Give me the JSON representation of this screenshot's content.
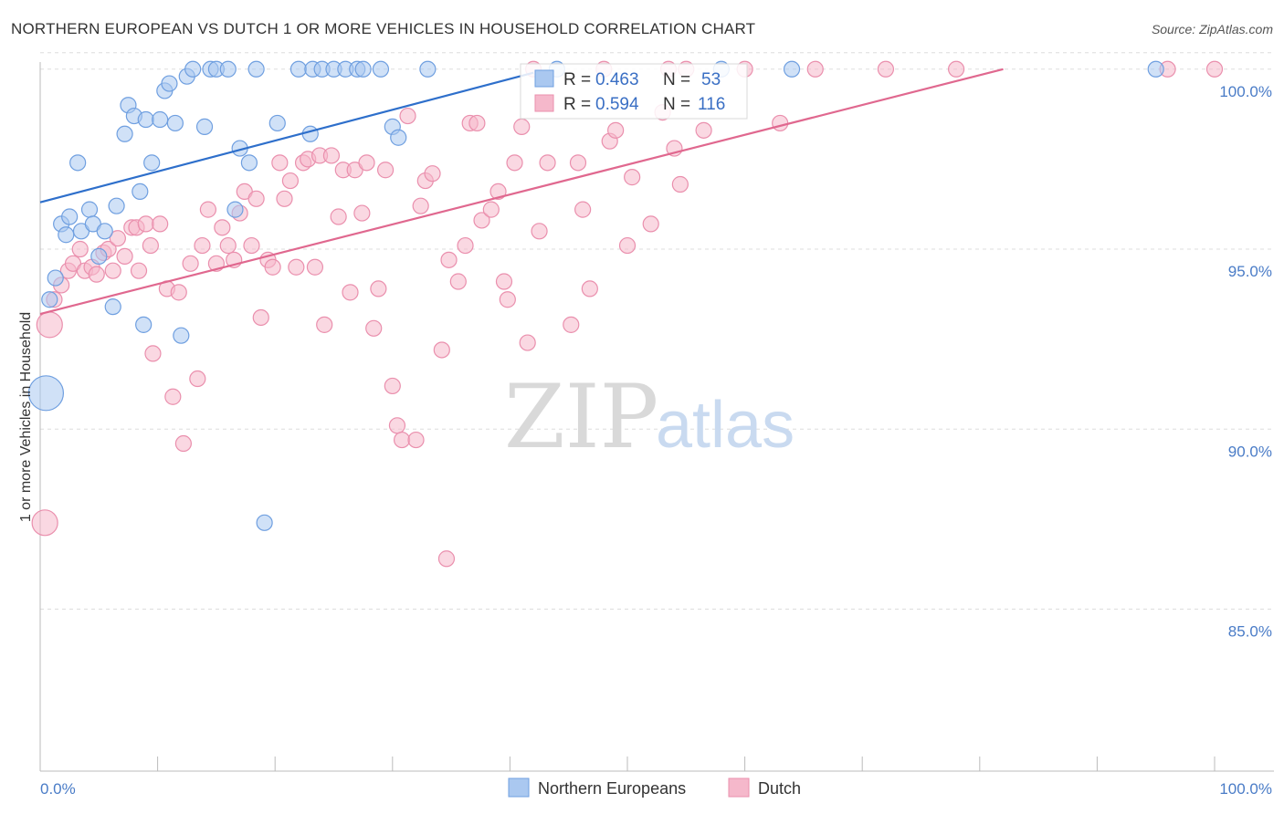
{
  "header": {
    "title": "NORTHERN EUROPEAN VS DUTCH 1 OR MORE VEHICLES IN HOUSEHOLD CORRELATION CHART",
    "source": "Source: ZipAtlas.com"
  },
  "watermark": {
    "zip": "ZIP",
    "atlas": "atlas"
  },
  "colors": {
    "blue_fill": "#aac8f0",
    "blue_stroke": "#6f9fe0",
    "blue_line": "#2e6fcb",
    "pink_fill": "#f5b8cb",
    "pink_stroke": "#ea8fad",
    "pink_line": "#e0688f",
    "grid": "#dddddd",
    "tick": "#4a7cc7"
  },
  "legend_stats": [
    {
      "r_label": "R =",
      "r_value": "0.463",
      "n_label": "N =",
      "n_value": "53"
    },
    {
      "r_label": "R =",
      "r_value": "0.594",
      "n_label": "N =",
      "n_value": "116"
    }
  ],
  "chart_data": {
    "type": "scatter",
    "title": "NORTHERN EUROPEAN VS DUTCH 1 OR MORE VEHICLES IN HOUSEHOLD CORRELATION CHART",
    "xlabel": "",
    "ylabel": "1 or more Vehicles in Household",
    "xlim": [
      0,
      100
    ],
    "ylim": [
      80.5,
      100.4
    ],
    "x_tick_labels": [
      "0.0%",
      "100.0%"
    ],
    "y_ticks": [
      100,
      95,
      90,
      85
    ],
    "y_tick_labels": [
      "100.0%",
      "95.0%",
      "90.0%",
      "85.0%"
    ],
    "grid": true,
    "legend_position": "bottom",
    "series": [
      {
        "name": "Northern Europeans",
        "trend": {
          "x0": 0,
          "y0": 96.3,
          "x1": 42,
          "y1": 99.9
        },
        "points": [
          [
            0.8,
            93.6
          ],
          [
            1.3,
            94.2
          ],
          [
            1.8,
            95.7
          ],
          [
            2.2,
            95.4
          ],
          [
            2.5,
            95.9
          ],
          [
            3.2,
            97.4
          ],
          [
            3.5,
            95.5
          ],
          [
            4.2,
            96.1
          ],
          [
            4.5,
            95.7
          ],
          [
            5.0,
            94.8
          ],
          [
            5.5,
            95.5
          ],
          [
            6.2,
            93.4
          ],
          [
            6.5,
            96.2
          ],
          [
            7.2,
            98.2
          ],
          [
            7.5,
            99.0
          ],
          [
            8.0,
            98.7
          ],
          [
            8.5,
            96.6
          ],
          [
            8.8,
            92.9
          ],
          [
            9.0,
            98.6
          ],
          [
            9.5,
            97.4
          ],
          [
            10.2,
            98.6
          ],
          [
            10.6,
            99.4
          ],
          [
            11.0,
            99.6
          ],
          [
            11.5,
            98.5
          ],
          [
            12.0,
            92.6
          ],
          [
            12.5,
            99.8
          ],
          [
            13.0,
            100.0
          ],
          [
            14.0,
            98.4
          ],
          [
            14.5,
            100.0
          ],
          [
            15.0,
            100.0
          ],
          [
            16.0,
            100.0
          ],
          [
            16.6,
            96.1
          ],
          [
            17.0,
            97.8
          ],
          [
            17.8,
            97.4
          ],
          [
            18.4,
            100.0
          ],
          [
            19.1,
            87.4
          ],
          [
            20.2,
            98.5
          ],
          [
            22.0,
            100.0
          ],
          [
            23.0,
            98.2
          ],
          [
            23.2,
            100.0
          ],
          [
            24.0,
            100.0
          ],
          [
            25.0,
            100.0
          ],
          [
            26.0,
            100.0
          ],
          [
            27.0,
            100.0
          ],
          [
            27.5,
            100.0
          ],
          [
            29.0,
            100.0
          ],
          [
            30.0,
            98.4
          ],
          [
            30.5,
            98.1
          ],
          [
            33.0,
            100.0
          ],
          [
            44.0,
            100.0
          ],
          [
            58.0,
            100.0
          ],
          [
            64.0,
            100.0
          ],
          [
            95.0,
            100.0
          ]
        ],
        "big_points": [
          [
            0.5,
            91.0
          ]
        ]
      },
      {
        "name": "Dutch",
        "trend": {
          "x0": 0,
          "y0": 93.2,
          "x1": 82,
          "y1": 100.0
        },
        "points": [
          [
            1.2,
            93.6
          ],
          [
            1.8,
            94.0
          ],
          [
            2.4,
            94.4
          ],
          [
            2.8,
            94.6
          ],
          [
            3.4,
            95.0
          ],
          [
            3.8,
            94.4
          ],
          [
            4.4,
            94.5
          ],
          [
            4.8,
            94.3
          ],
          [
            5.4,
            94.9
          ],
          [
            5.8,
            95.0
          ],
          [
            6.2,
            94.4
          ],
          [
            6.6,
            95.3
          ],
          [
            7.2,
            94.8
          ],
          [
            7.8,
            95.6
          ],
          [
            8.2,
            95.6
          ],
          [
            8.4,
            94.4
          ],
          [
            9.0,
            95.7
          ],
          [
            9.4,
            95.1
          ],
          [
            9.6,
            92.1
          ],
          [
            10.2,
            95.7
          ],
          [
            10.8,
            93.9
          ],
          [
            11.3,
            90.9
          ],
          [
            11.8,
            93.8
          ],
          [
            12.2,
            89.6
          ],
          [
            12.8,
            94.6
          ],
          [
            13.4,
            91.4
          ],
          [
            13.8,
            95.1
          ],
          [
            14.3,
            96.1
          ],
          [
            15.0,
            94.6
          ],
          [
            15.5,
            95.6
          ],
          [
            16.0,
            95.1
          ],
          [
            16.5,
            94.7
          ],
          [
            17.0,
            96.0
          ],
          [
            17.4,
            96.6
          ],
          [
            18.0,
            95.1
          ],
          [
            18.4,
            96.4
          ],
          [
            18.8,
            93.1
          ],
          [
            19.4,
            94.7
          ],
          [
            19.8,
            94.5
          ],
          [
            20.4,
            97.4
          ],
          [
            20.8,
            96.4
          ],
          [
            21.3,
            96.9
          ],
          [
            21.8,
            94.5
          ],
          [
            22.4,
            97.4
          ],
          [
            22.8,
            97.5
          ],
          [
            23.4,
            94.5
          ],
          [
            23.8,
            97.6
          ],
          [
            24.2,
            92.9
          ],
          [
            24.8,
            97.6
          ],
          [
            25.4,
            95.9
          ],
          [
            25.8,
            97.2
          ],
          [
            26.4,
            93.8
          ],
          [
            26.8,
            97.2
          ],
          [
            27.4,
            96.0
          ],
          [
            27.8,
            97.4
          ],
          [
            28.4,
            92.8
          ],
          [
            28.8,
            93.9
          ],
          [
            29.4,
            97.2
          ],
          [
            30.0,
            91.2
          ],
          [
            30.4,
            90.1
          ],
          [
            30.8,
            89.7
          ],
          [
            31.3,
            98.7
          ],
          [
            32.0,
            89.7
          ],
          [
            32.4,
            96.2
          ],
          [
            32.8,
            96.9
          ],
          [
            33.4,
            97.1
          ],
          [
            34.2,
            92.2
          ],
          [
            34.6,
            86.4
          ],
          [
            34.8,
            94.7
          ],
          [
            35.6,
            94.1
          ],
          [
            36.2,
            95.1
          ],
          [
            36.6,
            98.5
          ],
          [
            37.2,
            98.5
          ],
          [
            37.6,
            95.8
          ],
          [
            38.4,
            96.1
          ],
          [
            39.0,
            96.6
          ],
          [
            39.5,
            94.1
          ],
          [
            39.8,
            93.6
          ],
          [
            40.4,
            97.4
          ],
          [
            41.0,
            98.4
          ],
          [
            41.5,
            92.4
          ],
          [
            42.0,
            100.0
          ],
          [
            42.5,
            95.5
          ],
          [
            43.2,
            97.4
          ],
          [
            45.2,
            92.9
          ],
          [
            45.8,
            97.4
          ],
          [
            46.2,
            96.1
          ],
          [
            46.8,
            93.9
          ],
          [
            48.0,
            100.0
          ],
          [
            48.5,
            98.0
          ],
          [
            49.0,
            98.3
          ],
          [
            50.0,
            95.1
          ],
          [
            50.4,
            97.0
          ],
          [
            52.0,
            95.7
          ],
          [
            53.0,
            98.8
          ],
          [
            53.5,
            100.0
          ],
          [
            54.0,
            97.8
          ],
          [
            54.5,
            96.8
          ],
          [
            55.0,
            100.0
          ],
          [
            56.5,
            98.3
          ],
          [
            60.0,
            100.0
          ],
          [
            63.0,
            98.5
          ],
          [
            66.0,
            100.0
          ],
          [
            72.0,
            100.0
          ],
          [
            78.0,
            100.0
          ],
          [
            96.0,
            100.0
          ],
          [
            100.0,
            100.0
          ]
        ],
        "big_points": [
          [
            0.8,
            92.9
          ],
          [
            0.4,
            87.4
          ]
        ]
      }
    ]
  }
}
